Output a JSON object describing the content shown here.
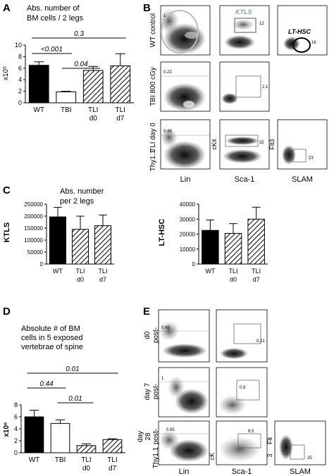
{
  "panels": {
    "A": "A",
    "B": "B",
    "C": "C",
    "D": "D",
    "E": "E"
  },
  "A": {
    "title_line1": "Abs. number of",
    "title_line2": "BM cells / 2 legs",
    "ylabel": "x10⁶",
    "yticks": [
      "0",
      "2",
      "4",
      "6",
      "8",
      "10"
    ],
    "xlabels": [
      [
        "WT"
      ],
      [
        "TBI"
      ],
      [
        "TLI",
        "d0"
      ],
      [
        "TLI",
        "d7"
      ]
    ],
    "sig": [
      {
        "label": "0.3"
      },
      {
        "label": "<0.001"
      },
      {
        "label": "0.04"
      }
    ]
  },
  "B": {
    "row_labels": [
      "WT control",
      "TBI 800 cGy",
      "TLI day 0"
    ],
    "row_sublabel": "Thy1.1",
    "gate_KTLS": "KTLS",
    "gate_LTHSC": "LT-HSC",
    "numbers": {
      "r1_lin": "1",
      "r1_sca": "12",
      "r1_slam": "16",
      "r2_lin": "0.22",
      "r2_sca": "2.1",
      "r3_lin": "0.48",
      "r3_sca": "32",
      "r3_slam": "23"
    },
    "axis_cKit": "cKit",
    "axis_Flt3": "Flt3",
    "bottom": [
      "Lin",
      "Sca-1",
      "SLAM"
    ]
  },
  "C": {
    "title_line1": "Abs. number",
    "title_line2": "per 2 legs",
    "left_ylabel": "KTLS",
    "left_yticks": [
      "0",
      "50000",
      "100000",
      "150000",
      "200000",
      "250000"
    ],
    "right_ylabel": "LT-HSC",
    "right_yticks": [
      "0",
      "10000",
      "20000",
      "30000",
      "40000"
    ],
    "xlabels": [
      [
        "WT"
      ],
      [
        "TLI",
        "d0"
      ],
      [
        "TLI",
        "d7"
      ]
    ]
  },
  "D": {
    "title_lines": [
      "Absolute # of BM",
      "cells in 5 exposed",
      "vertebrae of spine"
    ],
    "ylabel": "x10⁶",
    "yticks": [
      "0",
      "2",
      "4",
      "6",
      "8"
    ],
    "xlabels": [
      [
        "WT"
      ],
      [
        "TBI"
      ],
      [
        "TLI",
        "d0"
      ],
      [
        "TLI",
        "d7"
      ]
    ],
    "sig": [
      {
        "label": "0.01"
      },
      {
        "label": "0.44"
      },
      {
        "label": "0.01"
      }
    ]
  },
  "E": {
    "row_labels": [
      [
        "d0",
        "post-",
        "TLI"
      ],
      [
        "day 7",
        "post-",
        "TLI"
      ],
      [
        "day",
        "28",
        "post-",
        "TLI"
      ]
    ],
    "row_sublabel": "Thy1.1",
    "numbers": {
      "r1_lin": "0.49",
      "r1_sca": "0.21",
      "r2_lin": "1",
      "r2_sca": "0.8",
      "r3_lin": "0.95",
      "r3_sca": "6.5",
      "r3_slam": "25"
    },
    "axis_cK": "cK",
    "axis_Flt": "Flt",
    "axis_3": "3",
    "bottom": [
      "Lin",
      "Sca-1",
      "SLAM"
    ]
  },
  "chart_data": [
    {
      "type": "bar",
      "panel": "A",
      "title": "Abs. number of BM cells / 2 legs",
      "ylabel": "x10⁶",
      "categories": [
        "WT",
        "TBI",
        "TLI d0",
        "TLI d7"
      ],
      "values": [
        6.5,
        1.9,
        5.6,
        6.4
      ],
      "errors": [
        0.6,
        0.1,
        0.7,
        2.1
      ],
      "ylim": [
        0,
        10
      ],
      "fills": [
        "solid",
        "open",
        "hatch",
        "hatch"
      ]
    },
    {
      "type": "bar",
      "panel": "C-left",
      "ylabel": "KTLS",
      "categories": [
        "WT",
        "TLI d0",
        "TLI d7"
      ],
      "values": [
        197000,
        145000,
        160000
      ],
      "errors": [
        40000,
        55000,
        45000
      ],
      "ylim": [
        0,
        250000
      ],
      "fills": [
        "solid",
        "hatch",
        "hatch"
      ]
    },
    {
      "type": "bar",
      "panel": "C-right",
      "ylabel": "LT-HSC",
      "categories": [
        "WT",
        "TLI d0",
        "TLI d7"
      ],
      "values": [
        22500,
        20500,
        30000
      ],
      "errors": [
        7000,
        6500,
        8000
      ],
      "ylim": [
        0,
        40000
      ],
      "fills": [
        "solid",
        "hatch",
        "hatch"
      ]
    },
    {
      "type": "bar",
      "panel": "D",
      "title": "Absolute # of BM cells in 5 exposed vertebrae of spine",
      "ylabel": "x10⁶",
      "categories": [
        "WT",
        "TBI",
        "TLI d0",
        "TLI d7"
      ],
      "values": [
        6.0,
        4.9,
        1.2,
        2.2
      ],
      "errors": [
        1.1,
        0.6,
        0.3,
        0.15
      ],
      "ylim": [
        0,
        8
      ],
      "fills": [
        "solid",
        "open",
        "hatch",
        "hatch"
      ]
    }
  ]
}
